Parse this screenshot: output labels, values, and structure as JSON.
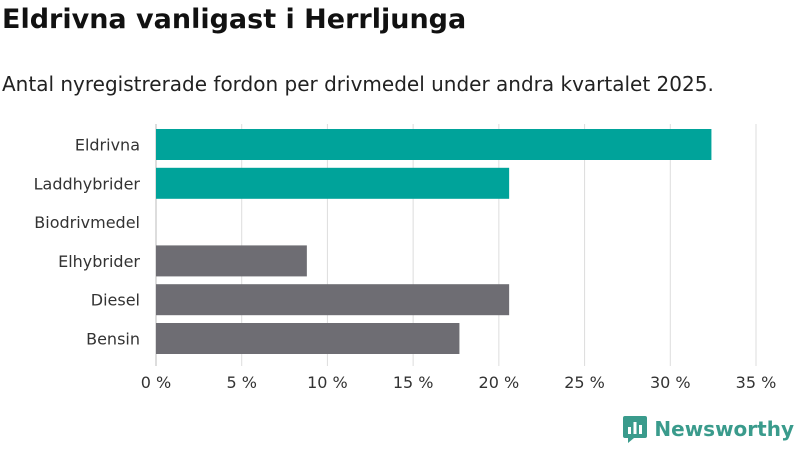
{
  "chart_data": {
    "type": "bar",
    "orientation": "horizontal",
    "title": "Eldrivna vanligast i Herrljunga",
    "subtitle": "Antal nyregistrerade fordon per drivmedel under andra kvartalet 2025.",
    "categories": [
      "Eldrivna",
      "Laddhybrider",
      "Biodrivmedel",
      "Elhybrider",
      "Diesel",
      "Bensin"
    ],
    "values": [
      32.4,
      20.6,
      0,
      8.8,
      20.6,
      17.7
    ],
    "bar_colors": [
      "#00a39a",
      "#00a39a",
      "#00a39a",
      "#6e6d73",
      "#6e6d73",
      "#6e6d73"
    ],
    "x_unit": "%",
    "xlim": [
      0,
      35
    ],
    "x_ticks": [
      0,
      5,
      10,
      15,
      20,
      25,
      30,
      35
    ],
    "x_tick_labels": [
      "0 %",
      "5 %",
      "10 %",
      "15 %",
      "20 %",
      "25 %",
      "30 %",
      "35 %"
    ],
    "grid": "vertical"
  },
  "brand": {
    "name": "Newsworthy",
    "logo_icon": "bar-chart-speech-bubble-icon",
    "color": "#3a9b8c"
  }
}
